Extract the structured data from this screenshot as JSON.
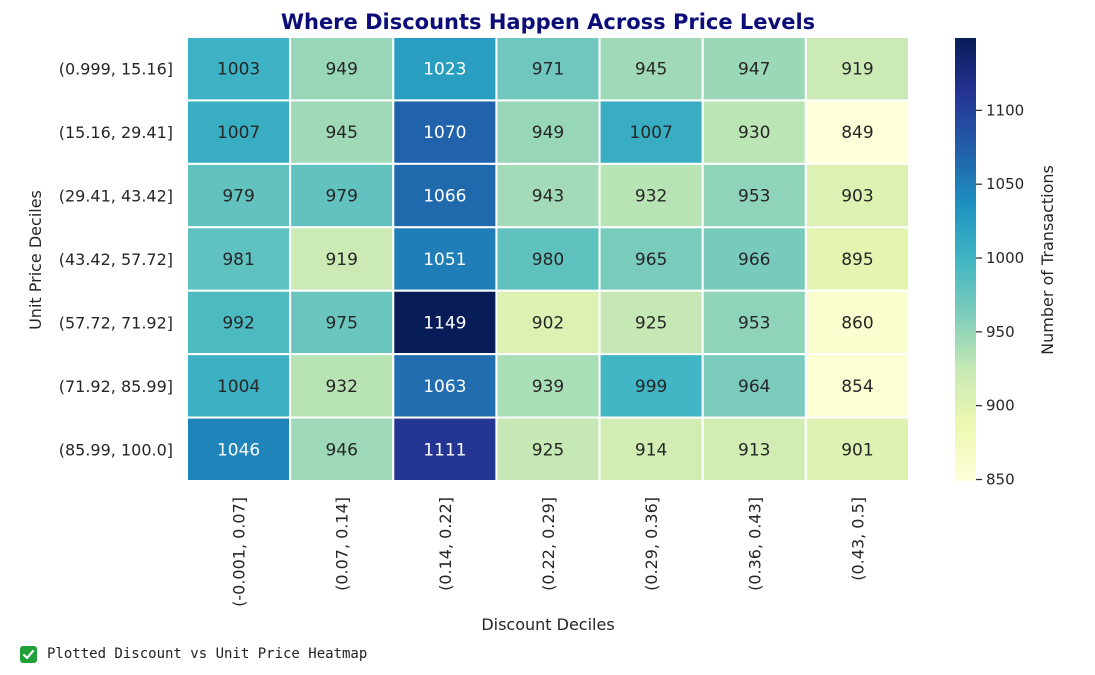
{
  "chart_data": {
    "type": "heatmap",
    "title": "Where Discounts Happen Across Price Levels",
    "xlabel": "Discount Deciles",
    "ylabel": "Unit Price Deciles",
    "colorbar_label": "Number of Transactions",
    "colormap": "YlGnBu",
    "colorbar_range": [
      849,
      1149
    ],
    "colorbar_ticks": [
      850,
      900,
      950,
      1000,
      1050,
      1100
    ],
    "title_color": "#0d0d7a",
    "x_categories": [
      "(-0.001, 0.07]",
      "(0.07, 0.14]",
      "(0.14, 0.22]",
      "(0.22, 0.29]",
      "(0.29, 0.36]",
      "(0.36, 0.43]",
      "(0.43, 0.5]"
    ],
    "y_categories": [
      "(0.999, 15.16]",
      "(15.16, 29.41]",
      "(29.41, 43.42]",
      "(43.42, 57.72]",
      "(57.72, 71.92]",
      "(71.92, 85.99]",
      "(85.99, 100.0]"
    ],
    "values": [
      [
        1003,
        949,
        1023,
        971,
        945,
        947,
        919
      ],
      [
        1007,
        945,
        1070,
        949,
        1007,
        930,
        849
      ],
      [
        979,
        979,
        1066,
        943,
        932,
        953,
        903
      ],
      [
        981,
        919,
        1051,
        980,
        965,
        966,
        895
      ],
      [
        992,
        975,
        1149,
        902,
        925,
        953,
        860
      ],
      [
        1004,
        932,
        1063,
        939,
        999,
        964,
        854
      ],
      [
        1046,
        946,
        1111,
        925,
        914,
        913,
        901
      ]
    ]
  },
  "status": {
    "icon": "check-mark-icon",
    "text": "Plotted Discount vs Unit Price Heatmap"
  }
}
